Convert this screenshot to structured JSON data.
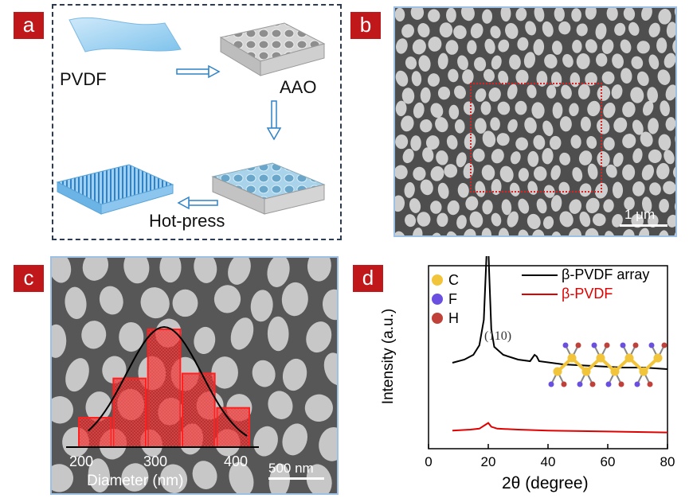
{
  "panel_labels": [
    "a",
    "b",
    "c",
    "d"
  ],
  "panel_a": {
    "pvdf_label": "PVDF",
    "aao_label": "AAO",
    "hotpress_label": "Hot-press"
  },
  "panel_b": {
    "scale_bar": "1 μm"
  },
  "panel_c": {
    "scale_bar": "500 nm",
    "chart_data": {
      "type": "bar",
      "xlabel": "Diameter (nm)",
      "x_ticks": [
        "200",
        "300",
        "400"
      ],
      "xlim": [
        190,
        420
      ],
      "categories": [
        200,
        250,
        300,
        350,
        400
      ],
      "values": [
        6,
        14,
        24,
        15,
        8
      ],
      "bar_color": "#e02020",
      "fit": "gaussian"
    }
  },
  "panel_d": {
    "chart_data": {
      "type": "line",
      "xlabel": "2θ (degree)",
      "ylabel": "Intensity (a.u.)",
      "xlim": [
        0,
        80
      ],
      "x_ticks": [
        "0",
        "20",
        "40",
        "60",
        "80"
      ],
      "peak_label": "(110)",
      "series": [
        {
          "name": "β-PVDF array",
          "color": "#000000",
          "points": [
            [
              8,
              0.15
            ],
            [
              12,
              0.17
            ],
            [
              15,
              0.2
            ],
            [
              17,
              0.26
            ],
            [
              18.5,
              0.42
            ],
            [
              19.3,
              0.78
            ],
            [
              19.8,
              1.0
            ],
            [
              20.3,
              0.72
            ],
            [
              21,
              0.36
            ],
            [
              22,
              0.25
            ],
            [
              25,
              0.2
            ],
            [
              30,
              0.17
            ],
            [
              34,
              0.16
            ],
            [
              35.5,
              0.2
            ],
            [
              36.2,
              0.19
            ],
            [
              37,
              0.16
            ],
            [
              45,
              0.14
            ],
            [
              55,
              0.13
            ],
            [
              65,
              0.12
            ],
            [
              72,
              0.12
            ],
            [
              80,
              0.11
            ]
          ]
        },
        {
          "name": "β-PVDF",
          "color": "#e00000",
          "points": [
            [
              8,
              0.04
            ],
            [
              14,
              0.05
            ],
            [
              17,
              0.06
            ],
            [
              19,
              0.1
            ],
            [
              20,
              0.12
            ],
            [
              21,
              0.08
            ],
            [
              23,
              0.06
            ],
            [
              30,
              0.05
            ],
            [
              40,
              0.04
            ],
            [
              60,
              0.03
            ],
            [
              80,
              0.02
            ]
          ]
        }
      ],
      "atom_legend": [
        {
          "symbol": "C",
          "color": "#f2c43a"
        },
        {
          "symbol": "F",
          "color": "#6a4fe0"
        },
        {
          "symbol": "H",
          "color": "#c0413a"
        }
      ]
    }
  }
}
